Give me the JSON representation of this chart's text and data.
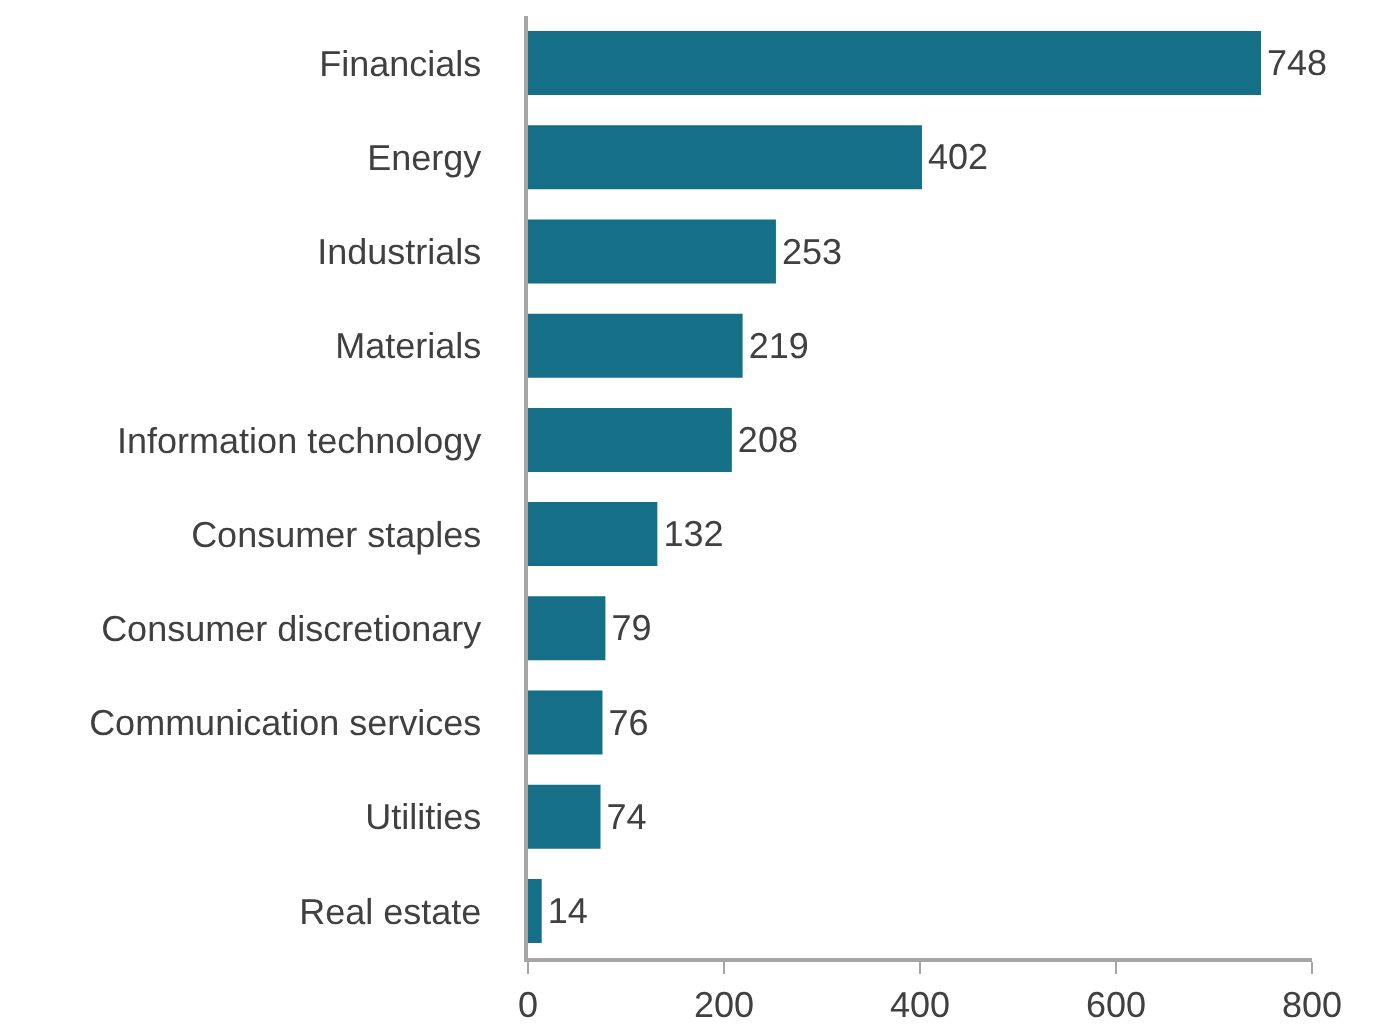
{
  "chart_data": {
    "type": "bar",
    "orientation": "horizontal",
    "categories": [
      "Financials",
      "Energy",
      "Industrials",
      "Materials",
      "Information technology",
      "Consumer staples",
      "Consumer discretionary",
      "Communication services",
      "Utilities",
      "Real estate"
    ],
    "values": [
      748,
      402,
      253,
      219,
      208,
      132,
      79,
      76,
      74,
      14
    ],
    "color": "#156f87",
    "xlim": [
      0,
      800
    ],
    "xticks": [
      0,
      200,
      400,
      600,
      800
    ],
    "data_labels": true
  }
}
